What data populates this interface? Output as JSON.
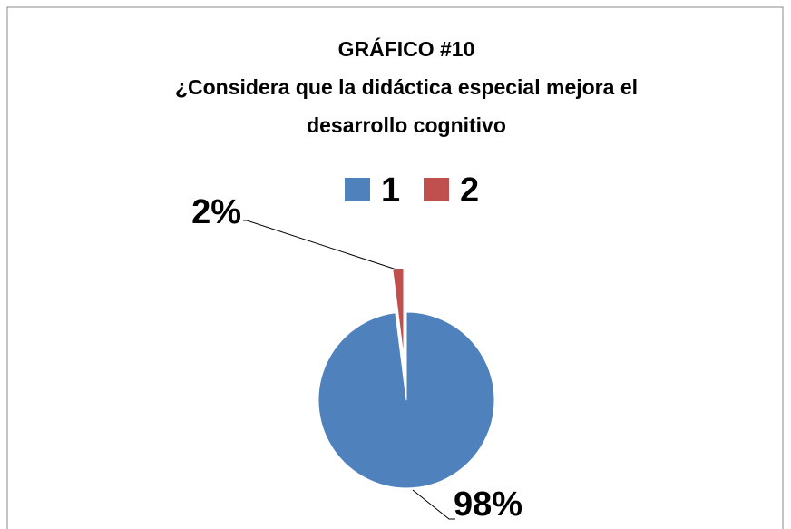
{
  "chart_data": {
    "type": "pie",
    "title": [
      "GRÁFICO #10",
      "¿Considera que la didáctica especial mejora el",
      "desarrollo cognitivo"
    ],
    "categories": [
      "1",
      "2"
    ],
    "values": [
      98,
      2
    ],
    "value_labels": [
      "98%",
      "2%"
    ],
    "colors": [
      "#4f81bd",
      "#c0504d"
    ],
    "legend": "top"
  }
}
